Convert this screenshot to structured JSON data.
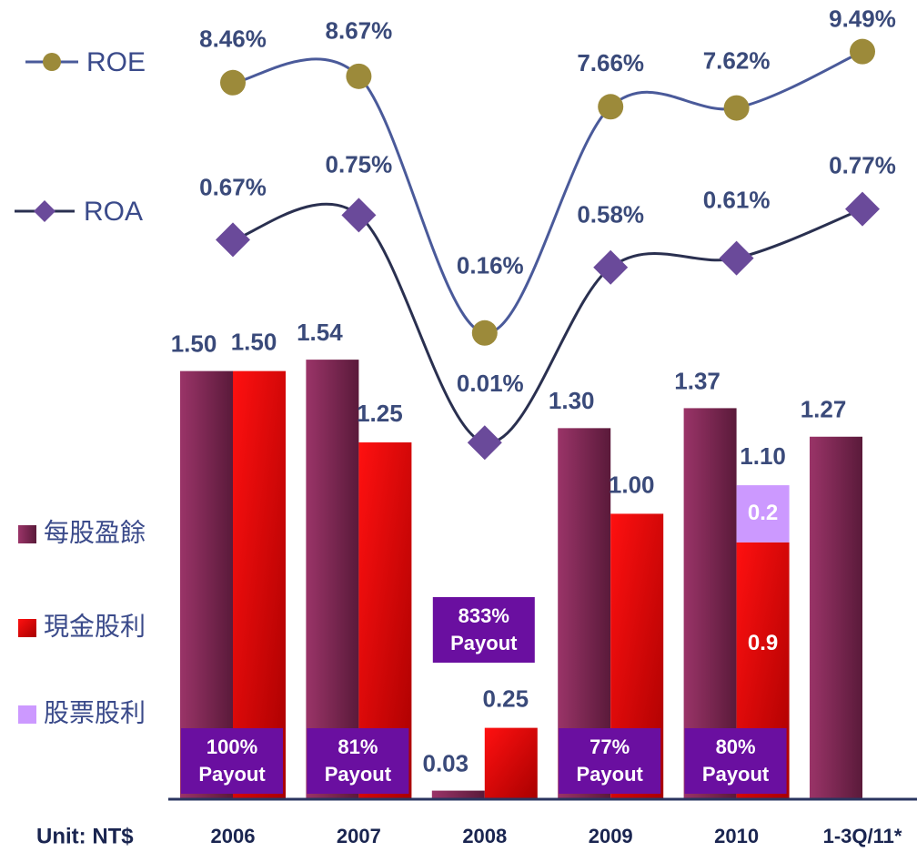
{
  "chart_data": {
    "type": "bar_line",
    "x_label": "Unit: NT$",
    "categories": [
      "2006",
      "2007",
      "2008",
      "2009",
      "2010",
      "1-3Q/11*"
    ],
    "ylim": [
      0,
      2.8
    ],
    "y2lim": [
      -15.3,
      11.2
    ],
    "y3lim": [
      -1.15,
      1.45
    ],
    "series": [
      {
        "name": "每股盈餘",
        "color": "#8b2a5a",
        "values": [
          1.5,
          1.54,
          0.03,
          1.3,
          1.37,
          1.27
        ],
        "value_labels": [
          "1.50",
          "1.54",
          "0.03",
          "1.30",
          "1.37",
          "1.27"
        ]
      },
      {
        "name": "現金股利",
        "color": "#ff0000",
        "values": [
          1.5,
          1.25,
          0.25,
          1.0,
          0.9,
          null
        ],
        "value_labels": [
          "1.50",
          "1.25",
          "0.25",
          "1.00",
          "0.9",
          null
        ]
      },
      {
        "name": "股票股利",
        "color": "#cc99ff",
        "values": [
          null,
          null,
          null,
          null,
          0.2,
          null
        ],
        "value_labels": [
          null,
          null,
          null,
          null,
          "0.2",
          null
        ]
      },
      {
        "name": "ROE",
        "color": "#9c8a3a",
        "line_color": "#4a5a9a",
        "axis": "y2",
        "values": [
          8.46,
          8.67,
          0.16,
          7.66,
          7.62,
          9.49
        ],
        "value_labels": [
          "8.46%",
          "8.67%",
          "0.16%",
          "7.66%",
          "7.62%",
          "9.49%"
        ]
      },
      {
        "name": "ROA",
        "color": "#6a4a9a",
        "line_color": "#2a3050",
        "axis": "y3",
        "values": [
          0.67,
          0.75,
          0.01,
          0.58,
          0.61,
          0.77
        ],
        "value_labels": [
          "0.67%",
          "0.75%",
          "0.01%",
          "0.58%",
          "0.61%",
          "0.77%"
        ]
      }
    ],
    "stack_total_labels": [
      null,
      null,
      null,
      null,
      "1.10",
      null
    ],
    "payout_labels": [
      "100%",
      "81%",
      "833%",
      "77%",
      "80%",
      null
    ],
    "payout_word": "Payout",
    "payout_color": "#6a0fa0"
  }
}
